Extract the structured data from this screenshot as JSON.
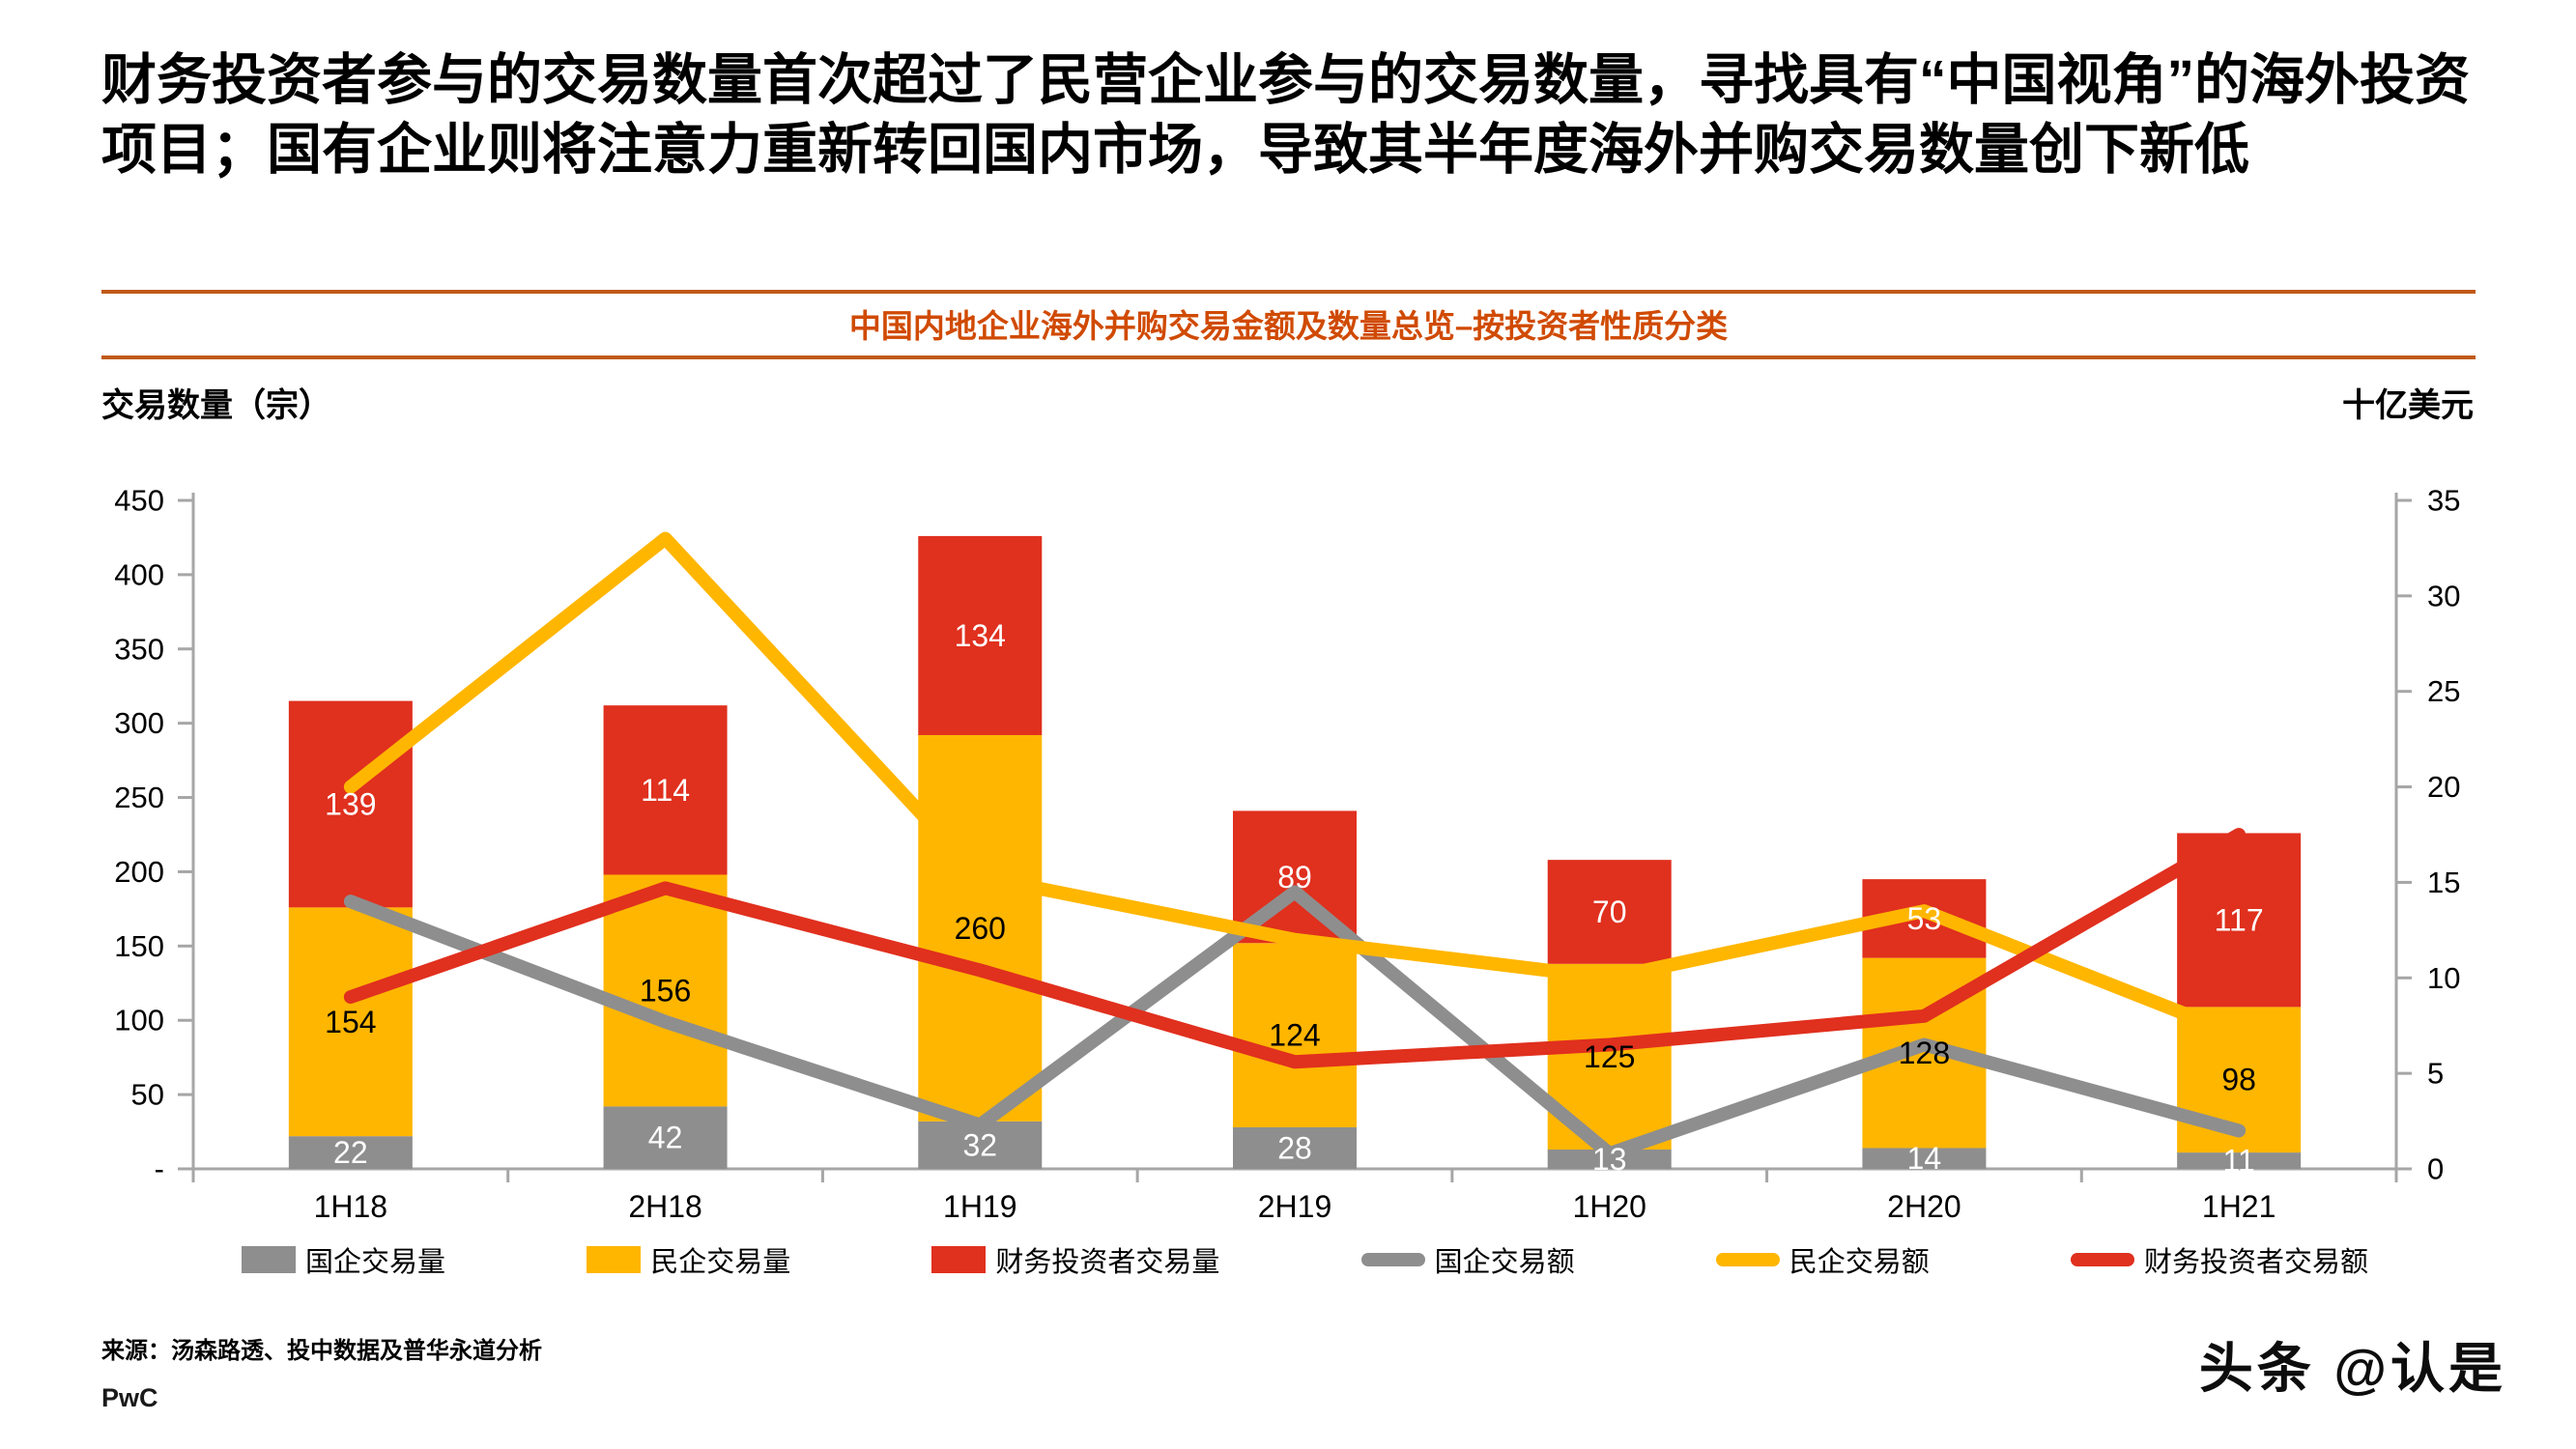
{
  "title": "财务投资者参与的交易数量首次超过了民营企业参与的交易数量，寻找具有“中国视角”的海外投资项目；国有企业则将注意力重新转回国内市场，导致其半年度海外并购交易数量创下新低",
  "subtitle": "中国内地企业海外并购交易金额及数量总览–按投资者性质分类",
  "source": "来源：汤森路透、投中数据及普华永道分析",
  "logo_text": "PwC",
  "watermark": "头条 @认是",
  "colors": {
    "red": "#e0301e",
    "yellow": "#ffb600",
    "gray": "#8e8e8e",
    "orange_text": "#d04a02",
    "rule": "#c05a17",
    "axis": "#a6a6a6",
    "white": "#ffffff",
    "black": "#000000"
  },
  "chart_data": {
    "type": "combo (stacked bar + line)",
    "categories": [
      "1H18",
      "2H18",
      "1H19",
      "2H19",
      "1H20",
      "2H20",
      "1H21"
    ],
    "bar_series": [
      {
        "id": "soe-volume",
        "name": "国企交易量",
        "color_key": "gray",
        "label_color": "#ffffff",
        "values": [
          22,
          42,
          32,
          28,
          13,
          14,
          11
        ]
      },
      {
        "id": "poe-volume",
        "name": "民企交易量",
        "color_key": "yellow",
        "label_color": "#000000",
        "values": [
          154,
          156,
          260,
          124,
          125,
          128,
          98
        ]
      },
      {
        "id": "financial-investor-volume",
        "name": "财务投资者交易量",
        "color_key": "red",
        "label_color": "#ffffff",
        "values": [
          139,
          114,
          134,
          89,
          70,
          53,
          117
        ]
      }
    ],
    "line_series": [
      {
        "id": "soe-value",
        "name": "国企交易额",
        "color_key": "gray",
        "values": [
          14,
          7.7,
          2.3,
          14.5,
          0.8,
          6.5,
          2
        ]
      },
      {
        "id": "poe-value",
        "name": "民企交易额",
        "color_key": "yellow",
        "values": [
          20,
          33,
          15.3,
          12,
          10,
          13.5,
          7
        ]
      },
      {
        "id": "financial-investor-value",
        "name": "财务投资者交易额",
        "color_key": "red",
        "values": [
          9,
          14.7,
          10.4,
          5.6,
          6.5,
          8,
          17.5
        ]
      }
    ],
    "left_axis": {
      "title": "交易数量（宗）",
      "max": 450,
      "tick_step": 50,
      "tick_labels": [
        "450",
        "400",
        "350",
        "300",
        "250",
        "200",
        "150",
        "100",
        "50",
        "-"
      ]
    },
    "right_axis": {
      "title": "十亿美元",
      "max": 35,
      "tick_step": 5,
      "tick_labels": [
        "35",
        "30",
        "25",
        "20",
        "15",
        "10",
        "5",
        "0"
      ]
    },
    "grid": "off",
    "legend_position": "bottom"
  },
  "legend": {
    "items": [
      {
        "label": "国企交易量",
        "swatch": "bar",
        "color_key": "gray"
      },
      {
        "label": "民企交易量",
        "swatch": "bar",
        "color_key": "yellow"
      },
      {
        "label": "财务投资者交易量",
        "swatch": "bar",
        "color_key": "red"
      },
      {
        "label": "国企交易额",
        "swatch": "line",
        "color_key": "gray"
      },
      {
        "label": "民企交易额",
        "swatch": "line",
        "color_key": "yellow"
      },
      {
        "label": "财务投资者交易额",
        "swatch": "line",
        "color_key": "red"
      }
    ]
  }
}
